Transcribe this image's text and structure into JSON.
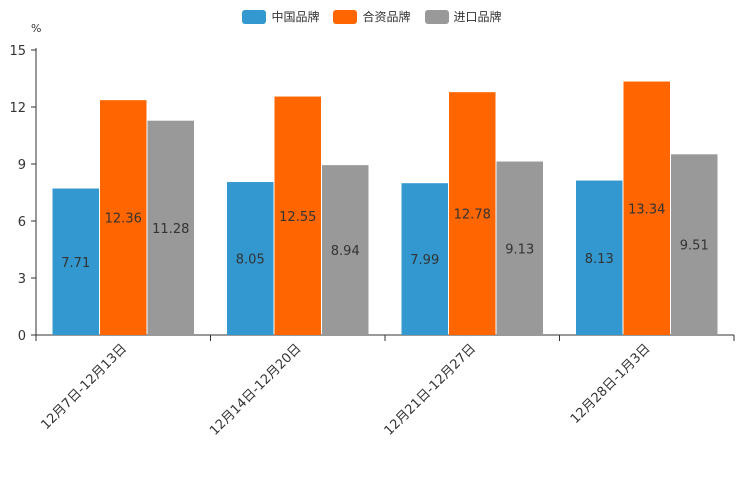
{
  "chart_data": {
    "type": "bar",
    "title": "",
    "unit_label": "%",
    "xlabel": "",
    "ylabel": "",
    "categories": [
      "12月7日-12月13日",
      "12月14日-12月20日",
      "12月21日-12月27日",
      "12月28日-1月3日"
    ],
    "series": [
      {
        "name": "中国品牌",
        "color": "#3398cf",
        "values": [
          7.71,
          8.05,
          7.99,
          8.13
        ],
        "labels": [
          "7.71",
          "8.05",
          "7.99",
          "8.13"
        ]
      },
      {
        "name": "合资品牌",
        "color": "#ff6600",
        "values": [
          12.36,
          12.55,
          12.78,
          13.34
        ],
        "labels": [
          "12.36",
          "12.55",
          "12.78",
          "13.34"
        ]
      },
      {
        "name": "进口品牌",
        "color": "#999999",
        "values": [
          11.28,
          8.94,
          9.13,
          9.51
        ],
        "labels": [
          "11.28",
          "8.94",
          "9.13",
          "9.51"
        ]
      }
    ],
    "yticks": [
      "0",
      "3",
      "6",
      "9",
      "12",
      "15"
    ],
    "ylim": [
      0,
      15
    ],
    "grid": false,
    "legend_position": "top-center"
  }
}
